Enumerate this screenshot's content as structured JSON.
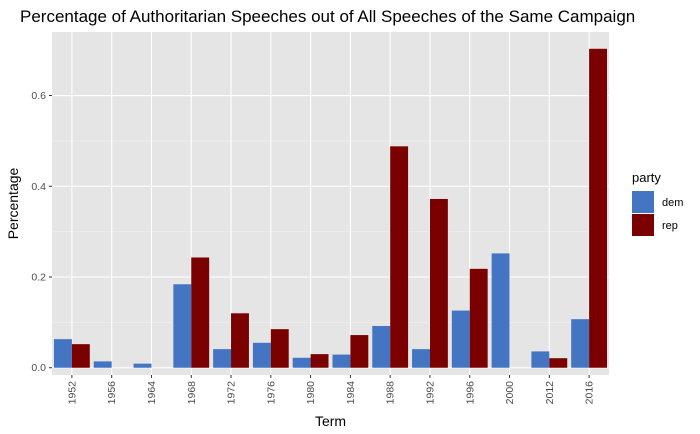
{
  "chart_data": {
    "type": "bar",
    "title": "Percentage of Authoritarian Speeches out of All Speeches of the Same Campaign",
    "xlabel": "Term",
    "ylabel": "Percentage",
    "categories": [
      "1952",
      "1956",
      "1964",
      "1968",
      "1972",
      "1976",
      "1980",
      "1984",
      "1988",
      "1992",
      "1996",
      "2000",
      "2012",
      "2016"
    ],
    "series": [
      {
        "name": "dem",
        "color": "#4375c2",
        "values": [
          0.063,
          0.014,
          0.009,
          0.184,
          0.041,
          0.055,
          0.022,
          0.029,
          0.092,
          0.041,
          0.126,
          0.252,
          0.036,
          0.107
        ]
      },
      {
        "name": "rep",
        "color": "#7b0000",
        "values": [
          0.052,
          0.0,
          0.0,
          0.243,
          0.12,
          0.085,
          0.03,
          0.072,
          0.488,
          0.372,
          0.218,
          0.0,
          0.021,
          0.703
        ]
      }
    ],
    "ylim": [
      -0.016,
      0.74
    ],
    "yticks": [
      0.0,
      0.2,
      0.4,
      0.6
    ],
    "ytick_labels": [
      "0.0",
      "0.2",
      "0.4",
      "0.6"
    ],
    "grid": true,
    "legend": {
      "title": "party",
      "placement": "right"
    }
  }
}
